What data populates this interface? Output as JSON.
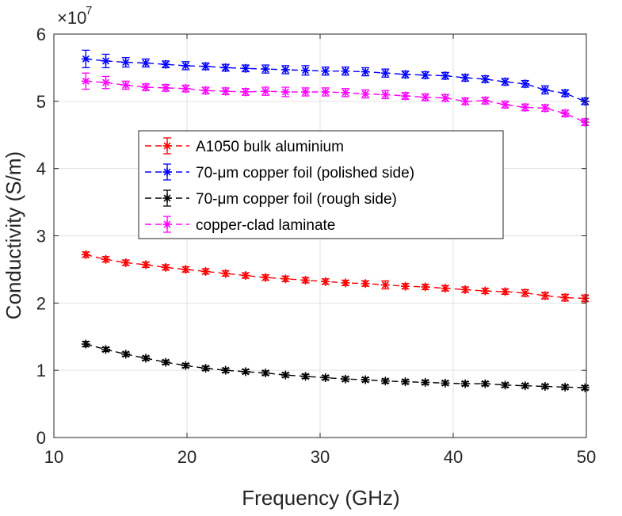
{
  "chart_data": {
    "type": "line",
    "title": "",
    "xlabel": "Frequency (GHz)",
    "ylabel": "Conductivity (S/m)",
    "y_multiplier_label": {
      "base": "×10",
      "exponent": "7"
    },
    "xlim": [
      10,
      50
    ],
    "ylim": [
      0,
      6
    ],
    "xticks": [
      10,
      20,
      30,
      40,
      50
    ],
    "yticks": [
      0,
      1,
      2,
      3,
      4,
      5,
      6
    ],
    "grid": true,
    "legend_position": "center-left inside axes",
    "x": [
      12.4,
      13.9,
      15.4,
      16.9,
      18.4,
      19.9,
      21.4,
      22.9,
      24.4,
      25.9,
      27.4,
      28.9,
      30.4,
      31.9,
      33.4,
      34.9,
      36.4,
      37.9,
      39.4,
      40.9,
      42.4,
      43.9,
      45.4,
      46.9,
      48.4,
      49.9
    ],
    "series": [
      {
        "name": "A1050 bulk aluminium",
        "color": "#ff0000",
        "values": [
          2.72,
          2.65,
          2.6,
          2.57,
          2.53,
          2.5,
          2.47,
          2.44,
          2.41,
          2.38,
          2.36,
          2.34,
          2.32,
          2.3,
          2.29,
          2.27,
          2.25,
          2.24,
          2.22,
          2.2,
          2.18,
          2.17,
          2.15,
          2.11,
          2.08,
          2.07
        ],
        "error": [
          0.04,
          0.04,
          0.04,
          0.04,
          0.04,
          0.04,
          0.04,
          0.04,
          0.04,
          0.04,
          0.04,
          0.04,
          0.04,
          0.04,
          0.04,
          0.06,
          0.04,
          0.04,
          0.04,
          0.04,
          0.04,
          0.04,
          0.05,
          0.05,
          0.05,
          0.05
        ]
      },
      {
        "name": "70-μm copper foil (polished side)",
        "color": "#0000ff",
        "values": [
          5.63,
          5.6,
          5.58,
          5.57,
          5.55,
          5.53,
          5.52,
          5.5,
          5.49,
          5.48,
          5.47,
          5.46,
          5.45,
          5.45,
          5.44,
          5.42,
          5.4,
          5.39,
          5.38,
          5.35,
          5.33,
          5.29,
          5.26,
          5.17,
          5.12,
          5.0
        ],
        "error": [
          0.13,
          0.1,
          0.07,
          0.06,
          0.05,
          0.06,
          0.05,
          0.05,
          0.05,
          0.06,
          0.06,
          0.07,
          0.06,
          0.06,
          0.06,
          0.06,
          0.05,
          0.05,
          0.05,
          0.05,
          0.05,
          0.05,
          0.05,
          0.06,
          0.05,
          0.05
        ]
      },
      {
        "name": "70-μm copper foil (rough side)",
        "color": "#000000",
        "values": [
          1.39,
          1.31,
          1.24,
          1.18,
          1.12,
          1.07,
          1.03,
          1.0,
          0.98,
          0.96,
          0.93,
          0.91,
          0.89,
          0.87,
          0.86,
          0.84,
          0.83,
          0.82,
          0.81,
          0.8,
          0.8,
          0.78,
          0.77,
          0.76,
          0.75,
          0.74
        ],
        "error": [
          0.04,
          0.03,
          0.03,
          0.03,
          0.03,
          0.03,
          0.03,
          0.03,
          0.03,
          0.03,
          0.03,
          0.03,
          0.03,
          0.03,
          0.03,
          0.03,
          0.03,
          0.03,
          0.03,
          0.03,
          0.03,
          0.03,
          0.03,
          0.03,
          0.03,
          0.03
        ]
      },
      {
        "name": "copper-clad laminate",
        "color": "#ff00ff",
        "values": [
          5.3,
          5.28,
          5.24,
          5.21,
          5.2,
          5.19,
          5.16,
          5.15,
          5.14,
          5.15,
          5.14,
          5.14,
          5.14,
          5.13,
          5.11,
          5.1,
          5.08,
          5.06,
          5.05,
          5.0,
          5.01,
          4.95,
          4.91,
          4.9,
          4.82,
          4.69
        ],
        "error": [
          0.12,
          0.09,
          0.06,
          0.05,
          0.05,
          0.05,
          0.05,
          0.05,
          0.05,
          0.06,
          0.07,
          0.06,
          0.06,
          0.06,
          0.06,
          0.06,
          0.05,
          0.05,
          0.05,
          0.05,
          0.05,
          0.05,
          0.05,
          0.05,
          0.05,
          0.05
        ]
      }
    ]
  }
}
